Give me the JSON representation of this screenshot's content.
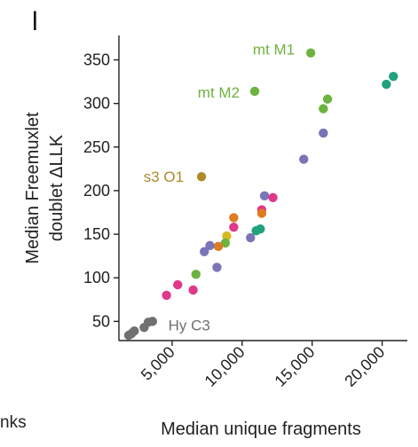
{
  "panel_letter": "l",
  "cut_text": "nks",
  "chart_data": {
    "type": "scatter",
    "xlabel": "Median unique fragments",
    "ylabel_lines": [
      "Median Freemuxlet",
      "doublet ΔLLK"
    ],
    "xlim": [
      1200,
      21800
    ],
    "ylim": [
      28,
      378
    ],
    "x_ticks": [
      5000,
      10000,
      15000,
      20000
    ],
    "x_tick_labels": [
      "5,000",
      "10,000",
      "15,000",
      "20,000"
    ],
    "y_ticks": [
      50,
      100,
      150,
      200,
      250,
      300,
      350
    ],
    "y_tick_labels": [
      "50",
      "100",
      "150",
      "200",
      "250",
      "300",
      "350"
    ],
    "grid": false,
    "colors": {
      "green": "#6db33f",
      "teal": "#21a17e",
      "gold": "#ad8a2a",
      "gray": "#707070",
      "purple": "#7a74b8",
      "pink": "#e0398b",
      "orange": "#dd7c22",
      "yellow": "#d8b820"
    },
    "annotations": [
      {
        "text": "mt M1",
        "x": 14900,
        "y": 358,
        "color": "#6db33f"
      },
      {
        "text": "mt M2",
        "x": 10900,
        "y": 314,
        "color": "#6db33f"
      },
      {
        "text": "s3 O1",
        "x": 7100,
        "y": 216,
        "color": "#ad8a2a"
      },
      {
        "text": "Hy C3",
        "x": 3900,
        "y": 48,
        "color": "#707070"
      }
    ],
    "points": [
      {
        "x": 14900,
        "y": 358,
        "color": "green"
      },
      {
        "x": 10900,
        "y": 314,
        "color": "green"
      },
      {
        "x": 16100,
        "y": 305,
        "color": "green"
      },
      {
        "x": 15800,
        "y": 294,
        "color": "green"
      },
      {
        "x": 20800,
        "y": 331,
        "color": "teal"
      },
      {
        "x": 20300,
        "y": 322,
        "color": "teal"
      },
      {
        "x": 15800,
        "y": 266,
        "color": "purple"
      },
      {
        "x": 14400,
        "y": 236,
        "color": "purple"
      },
      {
        "x": 7100,
        "y": 216,
        "color": "gold"
      },
      {
        "x": 11600,
        "y": 194,
        "color": "purple"
      },
      {
        "x": 12200,
        "y": 192,
        "color": "pink"
      },
      {
        "x": 11400,
        "y": 178,
        "color": "pink"
      },
      {
        "x": 11400,
        "y": 174,
        "color": "orange"
      },
      {
        "x": 9400,
        "y": 169,
        "color": "orange"
      },
      {
        "x": 9400,
        "y": 158,
        "color": "pink"
      },
      {
        "x": 11300,
        "y": 156,
        "color": "teal"
      },
      {
        "x": 11000,
        "y": 154,
        "color": "teal"
      },
      {
        "x": 10600,
        "y": 146,
        "color": "purple"
      },
      {
        "x": 8900,
        "y": 148,
        "color": "yellow"
      },
      {
        "x": 8800,
        "y": 140,
        "color": "green"
      },
      {
        "x": 8300,
        "y": 136,
        "color": "orange"
      },
      {
        "x": 7700,
        "y": 137,
        "color": "purple"
      },
      {
        "x": 7300,
        "y": 130,
        "color": "purple"
      },
      {
        "x": 8200,
        "y": 112,
        "color": "purple"
      },
      {
        "x": 6700,
        "y": 104,
        "color": "green"
      },
      {
        "x": 5400,
        "y": 92,
        "color": "pink"
      },
      {
        "x": 6500,
        "y": 86,
        "color": "pink"
      },
      {
        "x": 4600,
        "y": 80,
        "color": "pink"
      },
      {
        "x": 3600,
        "y": 50,
        "color": "gray"
      },
      {
        "x": 3300,
        "y": 49,
        "color": "gray"
      },
      {
        "x": 3000,
        "y": 43,
        "color": "gray"
      },
      {
        "x": 2300,
        "y": 39,
        "color": "gray"
      },
      {
        "x": 2100,
        "y": 36,
        "color": "gray"
      },
      {
        "x": 1900,
        "y": 34,
        "color": "gray"
      }
    ]
  }
}
